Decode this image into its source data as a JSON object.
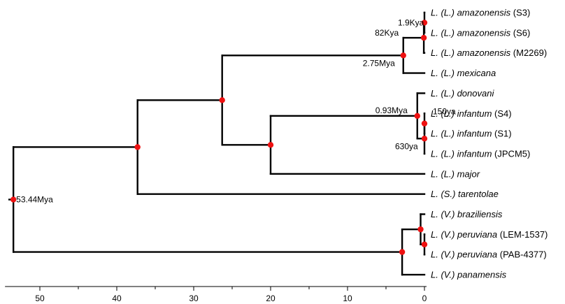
{
  "colors": {
    "branch": "#000000",
    "node": "#ee1111",
    "background": "#ffffff"
  },
  "axis": {
    "min": 0,
    "max": 53.44,
    "reversed": true,
    "ticks": [
      50,
      40,
      30,
      20,
      10,
      0
    ]
  },
  "leaves": [
    {
      "id": "am_s3",
      "genus": "L.",
      "subgenus": "(L.)",
      "species": "amazonensis",
      "strain": "(S3)"
    },
    {
      "id": "am_s6",
      "genus": "L.",
      "subgenus": "(L.)",
      "species": "amazonensis",
      "strain": "(S6)"
    },
    {
      "id": "am_m2269",
      "genus": "L.",
      "subgenus": "(L.)",
      "species": "amazonensis",
      "strain": "(M2269)"
    },
    {
      "id": "mexicana",
      "genus": "L.",
      "subgenus": "(L.)",
      "species": "mexicana",
      "strain": ""
    },
    {
      "id": "donovani",
      "genus": "L.",
      "subgenus": "(L.)",
      "species": "donovani",
      "strain": ""
    },
    {
      "id": "inf_s4",
      "genus": "L.",
      "subgenus": "(L.)",
      "species": "infantum",
      "strain": "(S4)"
    },
    {
      "id": "inf_s1",
      "genus": "L.",
      "subgenus": "(L.)",
      "species": "infantum",
      "strain": "(S1)"
    },
    {
      "id": "inf_jpcm5",
      "genus": "L.",
      "subgenus": "(L.)",
      "species": "infantum",
      "strain": "(JPCM5)"
    },
    {
      "id": "major",
      "genus": "L.",
      "subgenus": "(L.)",
      "species": "major",
      "strain": ""
    },
    {
      "id": "tarent",
      "genus": "L.",
      "subgenus": "(S.)",
      "species": "tarentolae",
      "strain": ""
    },
    {
      "id": "braz",
      "genus": "L.",
      "subgenus": "(V.)",
      "species": "braziliensis",
      "strain": ""
    },
    {
      "id": "per_lem",
      "genus": "L.",
      "subgenus": "(V.)",
      "species": "peruviana",
      "strain": "(LEM-1537)"
    },
    {
      "id": "per_pab",
      "genus": "L.",
      "subgenus": "(V.)",
      "species": "peruviana",
      "strain": "(PAB-4377)"
    },
    {
      "id": "panam",
      "genus": "L.",
      "subgenus": "(V.)",
      "species": "panamensis",
      "strain": ""
    }
  ],
  "nodes": [
    {
      "id": "n_am36",
      "age": 0.0019,
      "label": "1.9Kya",
      "children": [
        "am_s3",
        "am_s6"
      ]
    },
    {
      "id": "n_am",
      "age": 0.082,
      "label": "82Kya",
      "children": [
        "n_am36",
        "am_m2269"
      ]
    },
    {
      "id": "n_mex",
      "age": 2.75,
      "label": "2.75Mya",
      "children": [
        "n_am",
        "mexicana"
      ]
    },
    {
      "id": "n_inf41",
      "age": 0.00015,
      "label": "150ya",
      "children": [
        "inf_s4",
        "inf_s1"
      ]
    },
    {
      "id": "n_inf",
      "age": 0.00063,
      "label": "630ya",
      "children": [
        "n_inf41",
        "inf_jpcm5"
      ]
    },
    {
      "id": "n_don",
      "age": 0.93,
      "label": "0.93Mya",
      "children": [
        "donovani",
        "n_inf"
      ]
    },
    {
      "id": "n_don_maj",
      "age": 20.0,
      "label": "",
      "children": [
        "n_don",
        "major"
      ]
    },
    {
      "id": "n_leish",
      "age": 26.3,
      "label": "",
      "children": [
        "n_mex",
        "n_don_maj"
      ]
    },
    {
      "id": "n_ls",
      "age": 37.3,
      "label": "",
      "children": [
        "n_leish",
        "tarent"
      ]
    },
    {
      "id": "n_per",
      "age": 0.001,
      "label": "",
      "children": [
        "per_lem",
        "per_pab"
      ]
    },
    {
      "id": "n_braz",
      "age": 0.5,
      "label": "",
      "children": [
        "braz",
        "n_per"
      ]
    },
    {
      "id": "n_vian",
      "age": 2.9,
      "label": "",
      "children": [
        "n_braz",
        "panam"
      ]
    },
    {
      "id": "root",
      "age": 53.44,
      "label": "53.44Mya",
      "children": [
        "n_ls",
        "n_vian"
      ]
    }
  ]
}
